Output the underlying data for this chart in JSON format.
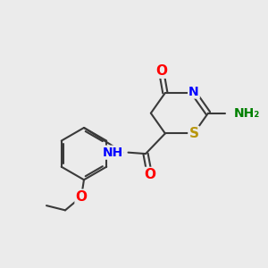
{
  "background_color": "#ebebeb",
  "bond_color": "#3a3a3a",
  "atom_colors": {
    "O": "#ff0000",
    "N": "#0000ff",
    "S": "#b8960c",
    "NH2": "#008000",
    "C": "#3a3a3a"
  },
  "font_size_atoms": 10,
  "figsize": [
    3.0,
    3.0
  ],
  "dpi": 100
}
